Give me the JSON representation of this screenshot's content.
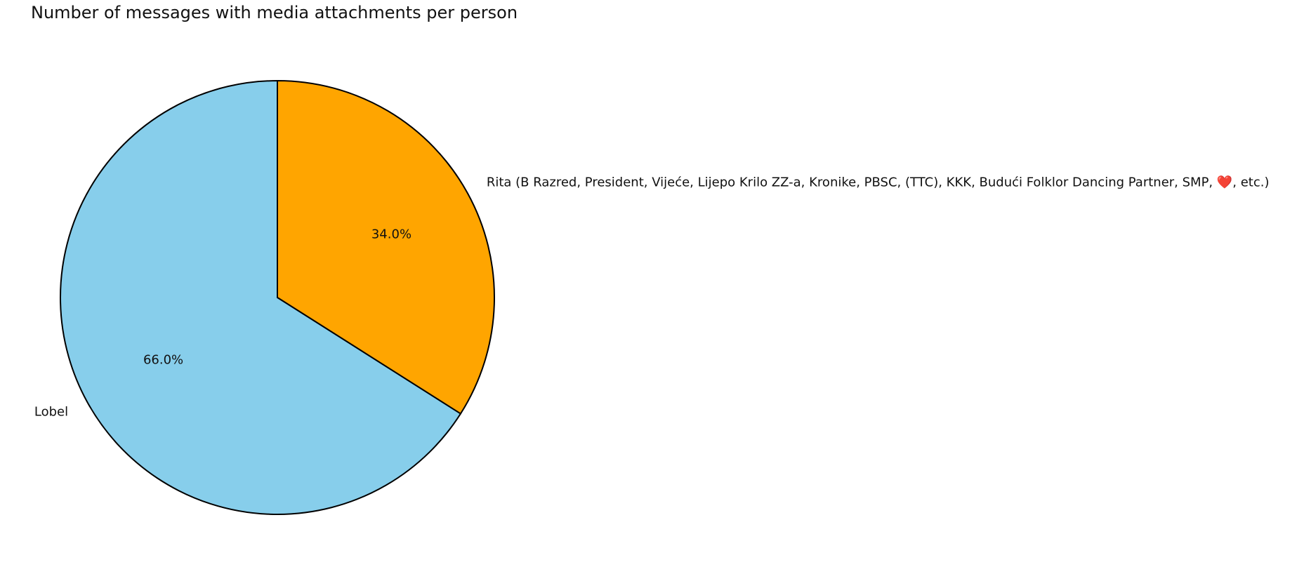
{
  "chart_data": {
    "type": "pie",
    "title": "Number of messages with media attachments per person",
    "slices": [
      {
        "label": "Rita (B Razred, President, Vijeće, Lijepo Krilo ZZ-a, Kronike, PBSC, (TTC), KKK, Budući Folklor Dancing Partner, SMP, ❤️, etc.)",
        "percent_label": "34.0%",
        "value": 34.0,
        "color": "#FFA500"
      },
      {
        "label": "Lobel",
        "percent_label": "66.0%",
        "value": 66.0,
        "color": "#87CEEB"
      }
    ],
    "start_angle": "top",
    "direction": "clockwise",
    "edge_color": "#000000",
    "legend": "none"
  }
}
